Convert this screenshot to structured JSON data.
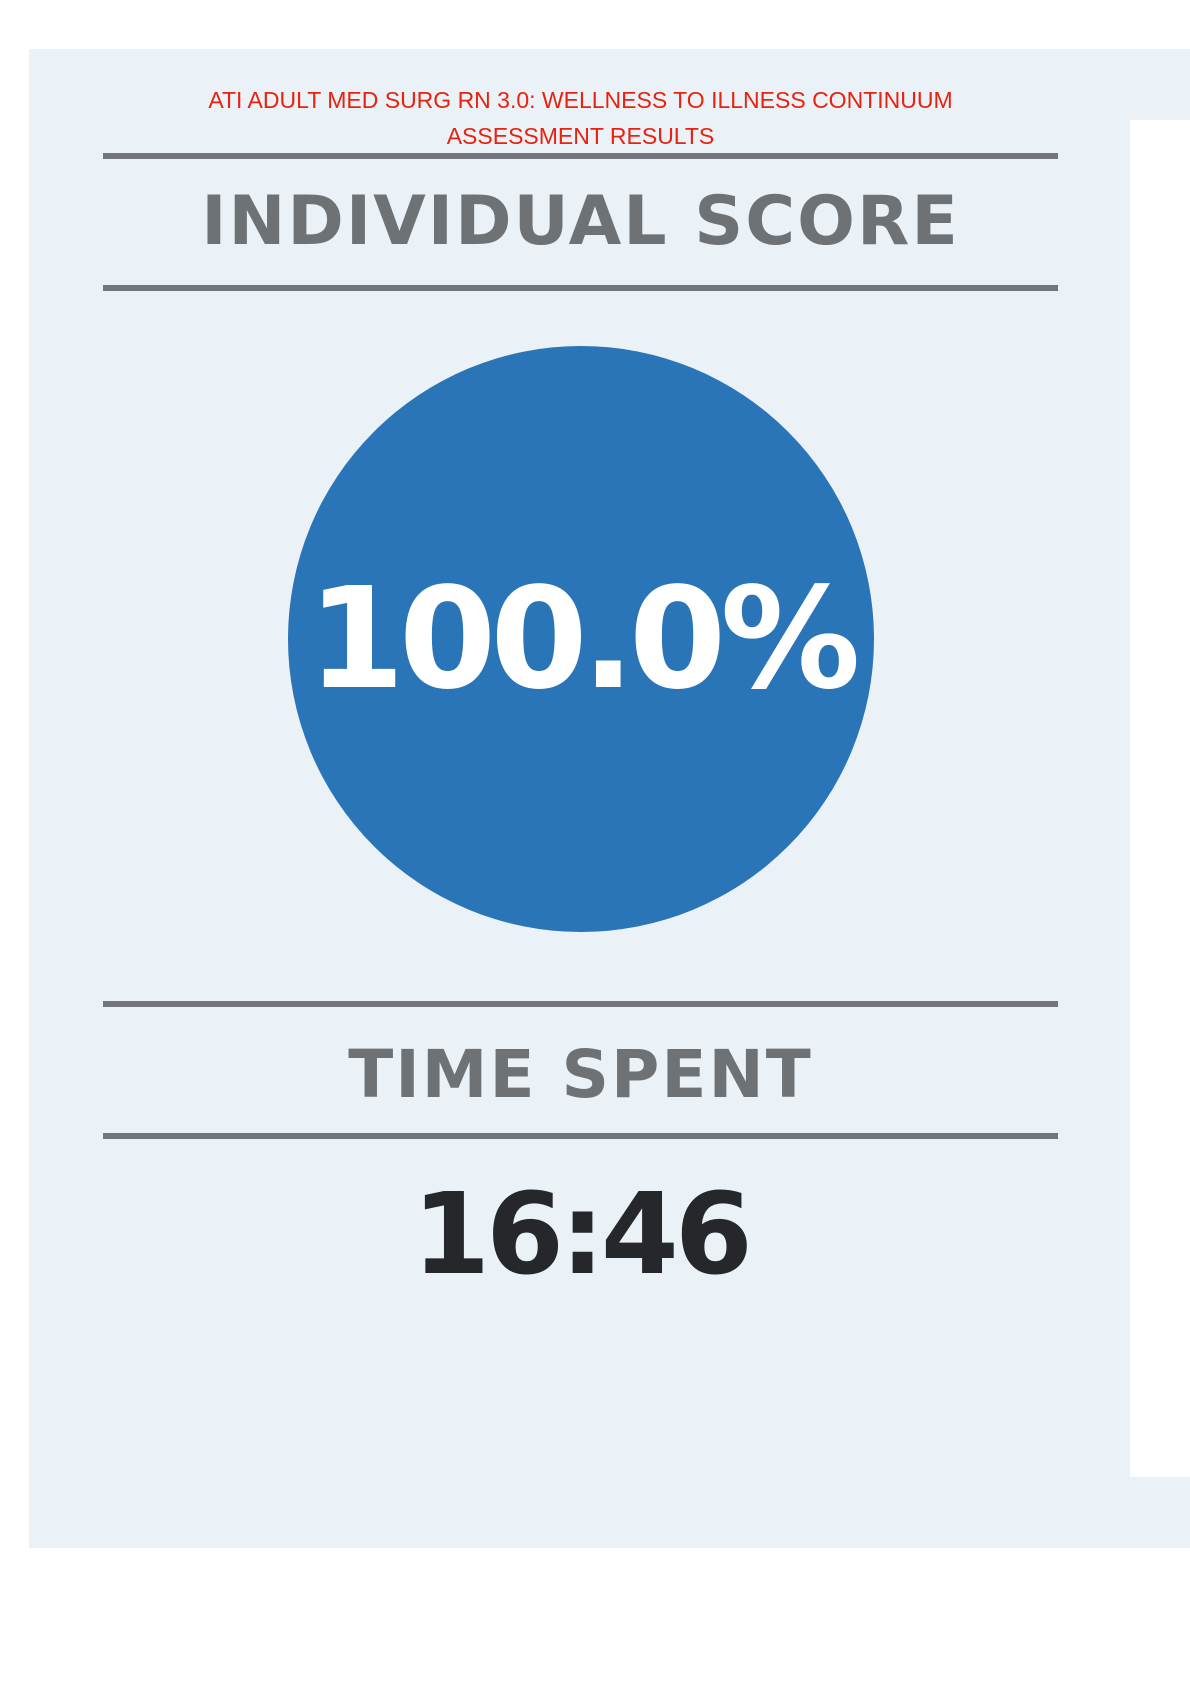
{
  "header": {
    "title_line1": "ATI ADULT MED SURG RN 3.0:  WELLNESS TO ILLNESS CONTINUUM",
    "title_line2": "ASSESSMENT RESULTS"
  },
  "score_section": {
    "heading": "INDIVIDUAL SCORE",
    "value": "100.0%"
  },
  "time_section": {
    "heading": "TIME SPENT",
    "value": "16:46"
  },
  "colors": {
    "title": "#e8220e",
    "score_circle": "#2a74b8",
    "rules": "#72767a",
    "panel_bg": "#eaf2f7"
  }
}
